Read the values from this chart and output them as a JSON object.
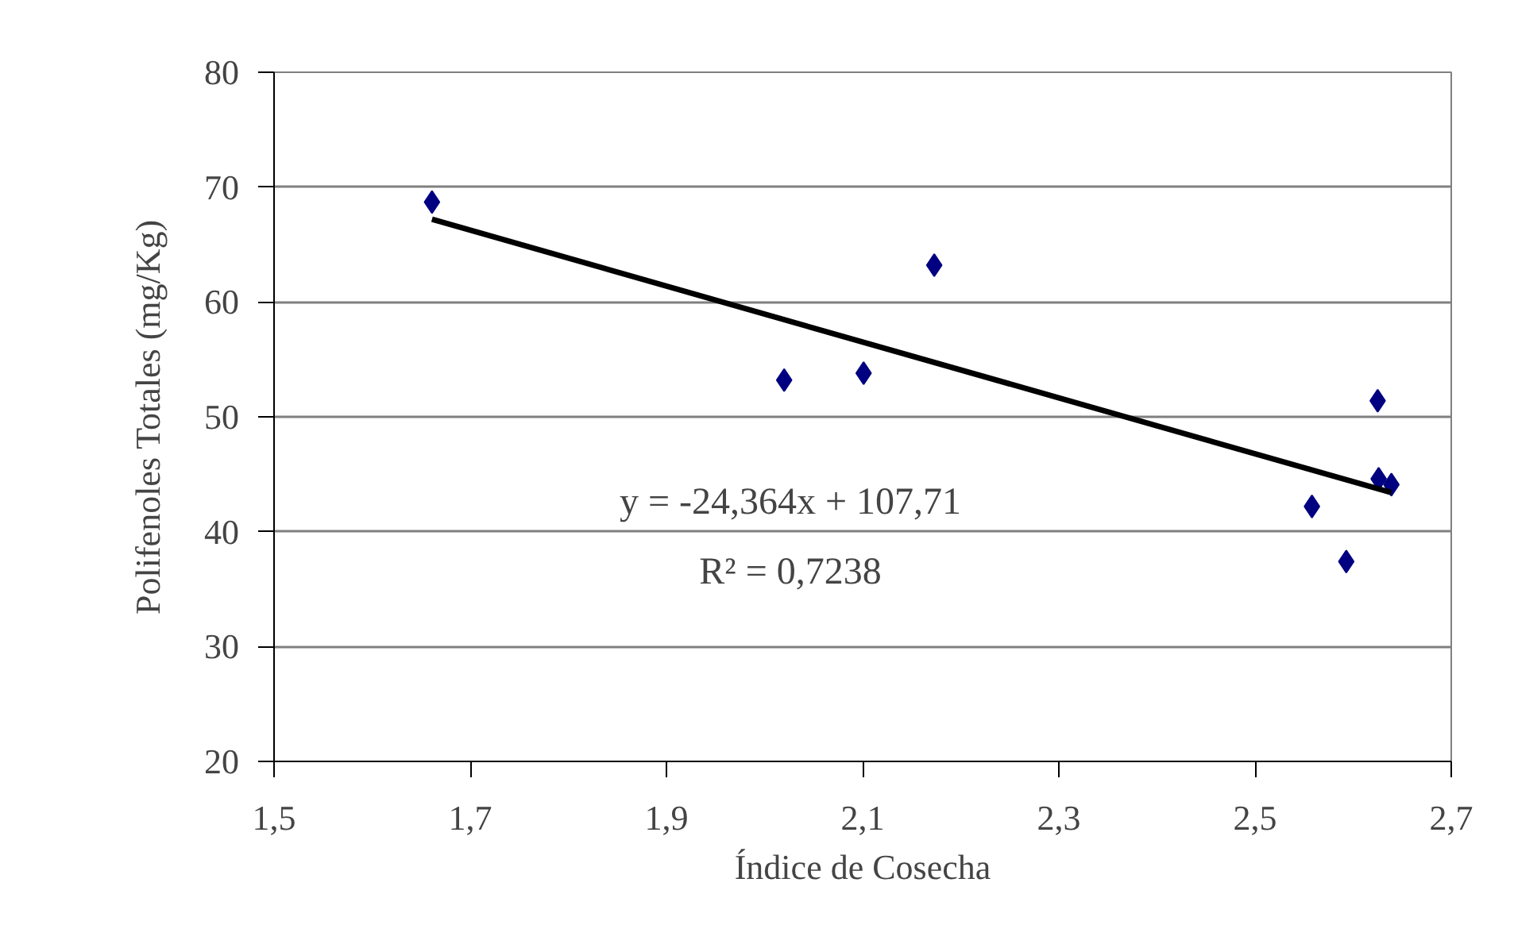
{
  "chart_data": {
    "type": "scatter",
    "xlabel": "Índice de Cosecha",
    "ylabel": "Polifenoles Totales (mg/Kg)",
    "series": [
      {
        "color": "#000080",
        "marker": "diamond",
        "x": [
          1.661,
          2.02,
          2.101,
          2.173,
          2.558,
          2.593,
          2.625,
          2.626,
          2.639
        ],
        "values": [
          68.7,
          53.2,
          53.8,
          63.2,
          42.2,
          37.4,
          51.4,
          44.6,
          44.1
        ]
      },
      {
        "type": "line",
        "color": "#000000",
        "marker": "none",
        "line_style": "solid",
        "x": [
          1.661,
          2.639
        ],
        "values": [
          67.2,
          43.4
        ]
      }
    ],
    "annotations": [
      "y = -24,364x + 107,71",
      "R² = 0,7238"
    ],
    "xlim": [
      1.5,
      2.7
    ],
    "ylim": [
      20,
      80
    ],
    "xticks": [
      {
        "value": 1.5,
        "label": "1,5"
      },
      {
        "value": 1.7,
        "label": "1,7"
      },
      {
        "value": 1.9,
        "label": "1,9"
      },
      {
        "value": 2.1,
        "label": "2,1"
      },
      {
        "value": 2.3,
        "label": "2,3"
      },
      {
        "value": 2.5,
        "label": "2,5"
      },
      {
        "value": 2.7,
        "label": "2,7"
      }
    ],
    "yticks": [
      20,
      30,
      40,
      50,
      60,
      70,
      80
    ],
    "grid": "y"
  }
}
